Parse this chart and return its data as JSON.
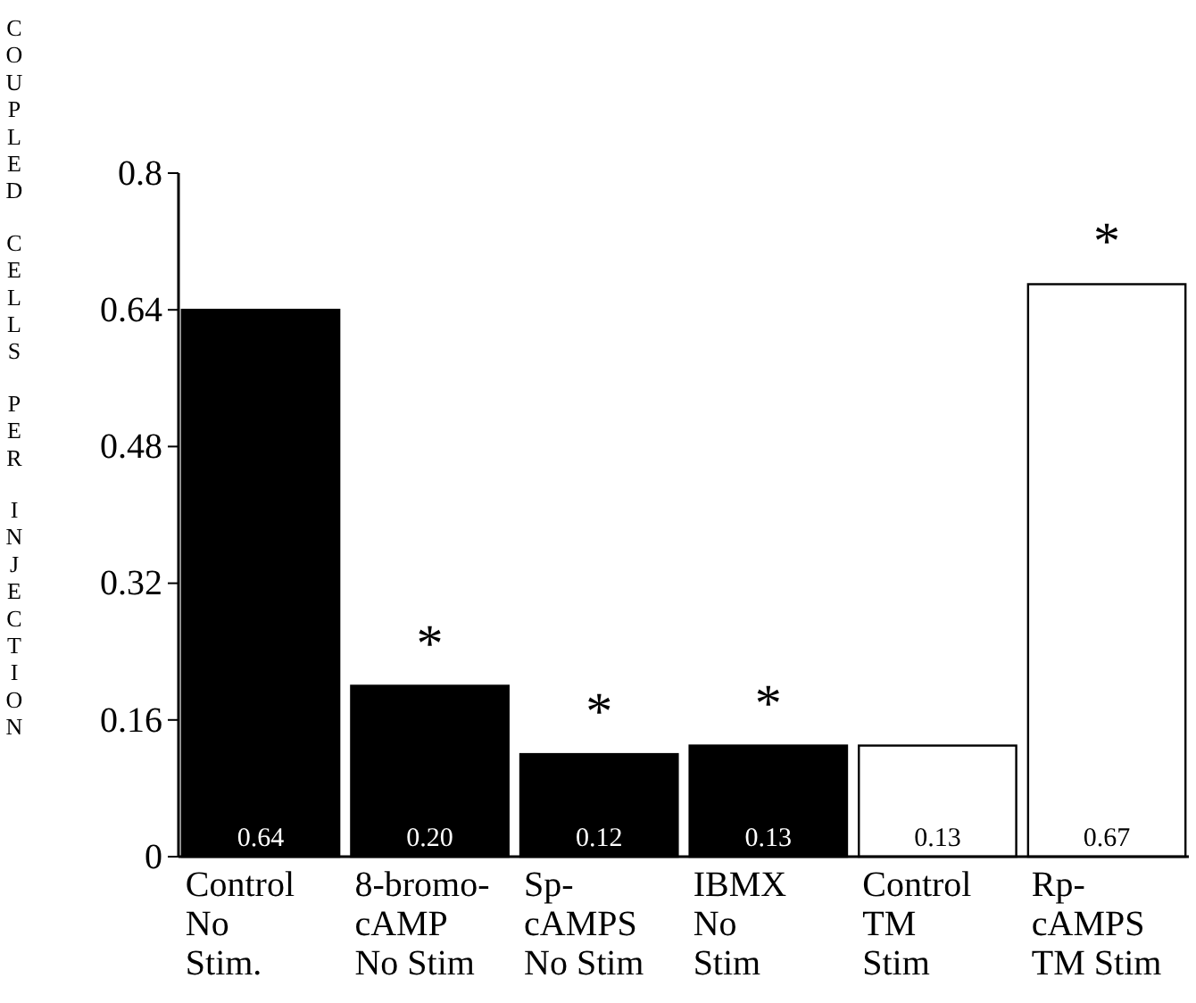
{
  "chart_data": {
    "type": "bar",
    "ylabel": "COUPLED CELLS PER INJECTION",
    "categories": [
      "Control\nNo\nStim.",
      "8-bromo-\ncAMP\nNo Stim",
      "Sp-\ncAMPS\nNo Stim",
      "IBMX\nNo\nStim",
      "Control\nTM\nStim",
      "Rp-\ncAMPS\nTM Stim"
    ],
    "values": [
      0.64,
      0.2,
      0.12,
      0.13,
      0.13,
      0.67
    ],
    "colors": [
      "#000000",
      "#000000",
      "#000000",
      "#000000",
      "#ffffff",
      "#ffffff"
    ],
    "value_labels": [
      "0.64",
      "0.20",
      "0.12",
      "0.13",
      "0.13",
      "0.67"
    ],
    "ylim": [
      0,
      0.8
    ],
    "yticks": [
      0,
      0.16,
      0.32,
      0.48,
      0.64,
      {
        "value": 0.8,
        "label": "0.8"
      }
    ],
    "annotations": [
      {
        "text": "*",
        "x": "8-bromo-\ncAMP\nNo Stim",
        "y": 0.2
      },
      {
        "text": "*",
        "x": "Sp-\ncAMPS\nNo Stim",
        "y": 0.12
      },
      {
        "text": "*",
        "x": "IBMX\nNo\nStim",
        "y": 0.13
      },
      {
        "text": "*",
        "x": "Rp-\ncAMPS\nTM Stim",
        "y": 0.67
      }
    ],
    "grid": false
  }
}
